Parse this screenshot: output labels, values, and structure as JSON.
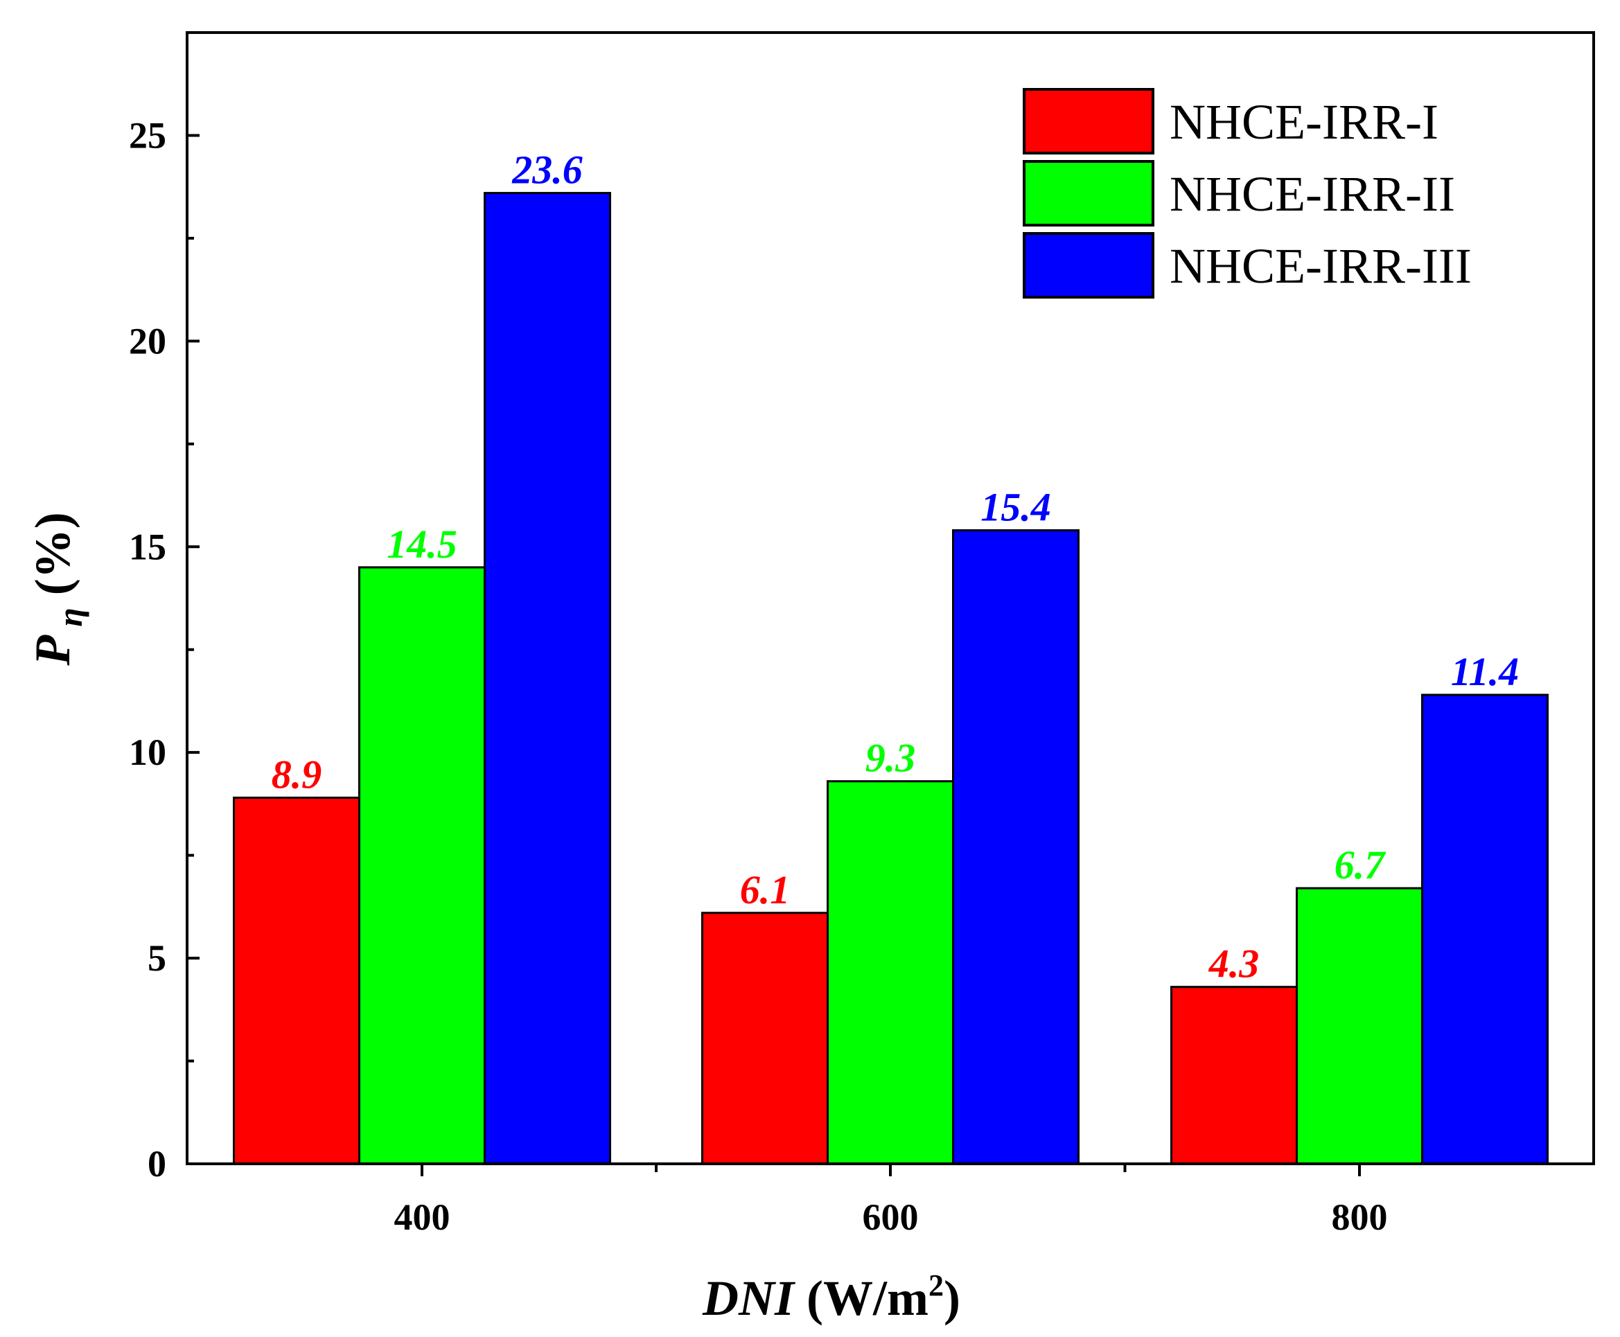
{
  "chart_data": {
    "type": "bar",
    "categories": [
      "400",
      "600",
      "800"
    ],
    "series": [
      {
        "name": "NHCE-IRR-I",
        "color": "#ff0000",
        "values": [
          8.9,
          6.1,
          4.3
        ],
        "labels": [
          "8.9",
          "6.1",
          "4.3"
        ]
      },
      {
        "name": "NHCE-IRR-II",
        "color": "#00ff00",
        "values": [
          14.5,
          9.3,
          6.7
        ],
        "labels": [
          "14.5",
          "9.3",
          "6.7"
        ]
      },
      {
        "name": "NHCE-IRR-III",
        "color": "#0000ff",
        "values": [
          23.6,
          15.4,
          11.4
        ],
        "labels": [
          "23.6",
          "15.4",
          "11.4"
        ]
      }
    ],
    "ylim": [
      0,
      27.5
    ],
    "yticks": [
      0,
      5,
      10,
      15,
      20,
      25
    ],
    "yticklabels": [
      "0",
      "5",
      "10",
      "15",
      "20",
      "25"
    ],
    "y_minor_step": 2.5,
    "xlabel": {
      "italic": "DNI",
      "rest": " (W/m",
      "sup": "2",
      "close": ")"
    },
    "ylabel": {
      "main": "P",
      "sub": "η",
      "rest": " (%)"
    },
    "legend": "top-right",
    "legend_entries": [
      "NHCE-IRR-I",
      "NHCE-IRR-II",
      "NHCE-IRR-III"
    ]
  }
}
